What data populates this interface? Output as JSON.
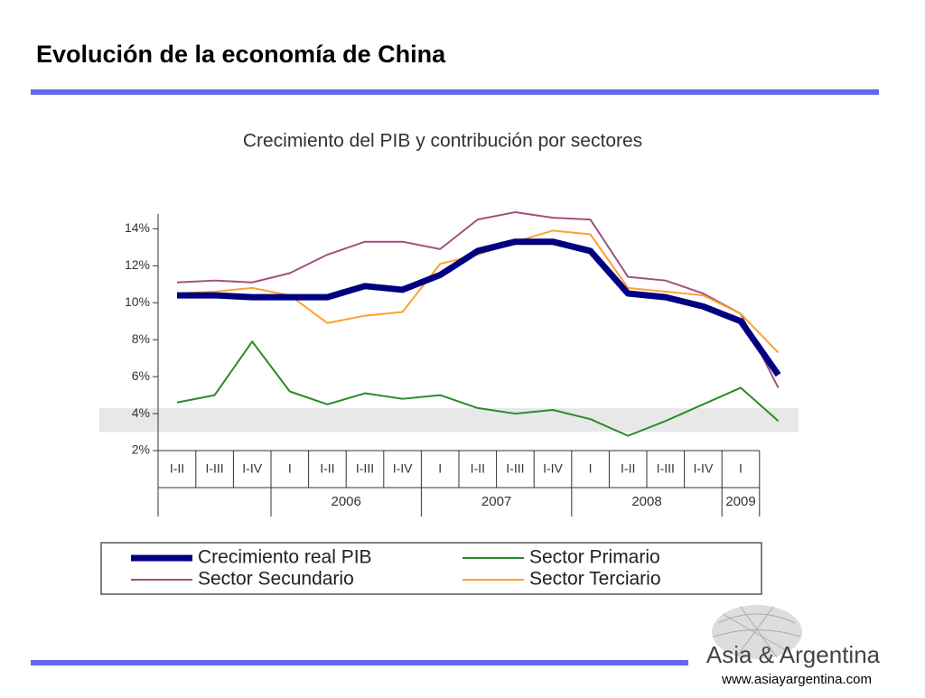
{
  "slide_title": "Evolución de la economía de China",
  "chart_data": {
    "type": "line",
    "title": "Crecimiento del PIB y contribución por sectores",
    "categories": [
      "I-II",
      "I-III",
      "I-IV",
      "I",
      "I-II",
      "I-III",
      "I-IV",
      "I",
      "I-II",
      "I-III",
      "I-IV",
      "I",
      "I-II",
      "I-III",
      "I-IV",
      "I",
      null
    ],
    "x_groups": [
      {
        "label": "2006",
        "from": 3,
        "to": 6
      },
      {
        "label": "2007",
        "from": 7,
        "to": 10
      },
      {
        "label": "2008",
        "from": 11,
        "to": 14
      },
      {
        "label": "2009",
        "from": 15,
        "to": 15
      }
    ],
    "series": [
      {
        "name": "Crecimiento real PIB",
        "color": "#000080",
        "width": 7,
        "values": [
          10.4,
          10.4,
          10.3,
          10.3,
          10.3,
          10.9,
          10.7,
          11.5,
          12.8,
          13.3,
          13.3,
          12.8,
          10.5,
          10.3,
          9.8,
          9.0,
          6.1
        ]
      },
      {
        "name": "Sector Primario",
        "color": "#2a8a2a",
        "width": 2,
        "values": [
          4.6,
          5.0,
          7.9,
          5.2,
          4.5,
          5.1,
          4.8,
          5.0,
          4.3,
          4.0,
          4.2,
          3.7,
          2.8,
          3.6,
          4.5,
          5.4,
          3.6
        ]
      },
      {
        "name": "Sector Secundario",
        "color": "#a05080",
        "width": 2,
        "values": [
          11.1,
          11.2,
          11.1,
          11.6,
          12.6,
          13.3,
          13.3,
          12.9,
          14.5,
          14.9,
          14.6,
          14.5,
          11.4,
          11.2,
          10.5,
          9.4,
          5.4
        ]
      },
      {
        "name": "Sector Terciario",
        "color": "#ffa030",
        "width": 2,
        "values": [
          10.5,
          10.6,
          10.8,
          10.4,
          8.9,
          9.3,
          9.5,
          12.1,
          12.6,
          13.3,
          13.9,
          13.7,
          10.8,
          10.6,
          10.4,
          9.4,
          7.3
        ]
      }
    ],
    "ylim": [
      2,
      14.8
    ],
    "yticks": [
      {
        "value": 2,
        "label": "2%"
      },
      {
        "value": 4,
        "label": "4%"
      },
      {
        "value": 6,
        "label": "6%"
      },
      {
        "value": 8,
        "label": "8%"
      },
      {
        "value": 10,
        "label": "10%"
      },
      {
        "value": 12,
        "label": "12%"
      },
      {
        "value": 14,
        "label": "14%"
      }
    ],
    "shaded_band": [
      3.0,
      4.3
    ]
  },
  "logo": {
    "name": "Asia & Argentina",
    "url": "www.asiayargentina.com"
  }
}
